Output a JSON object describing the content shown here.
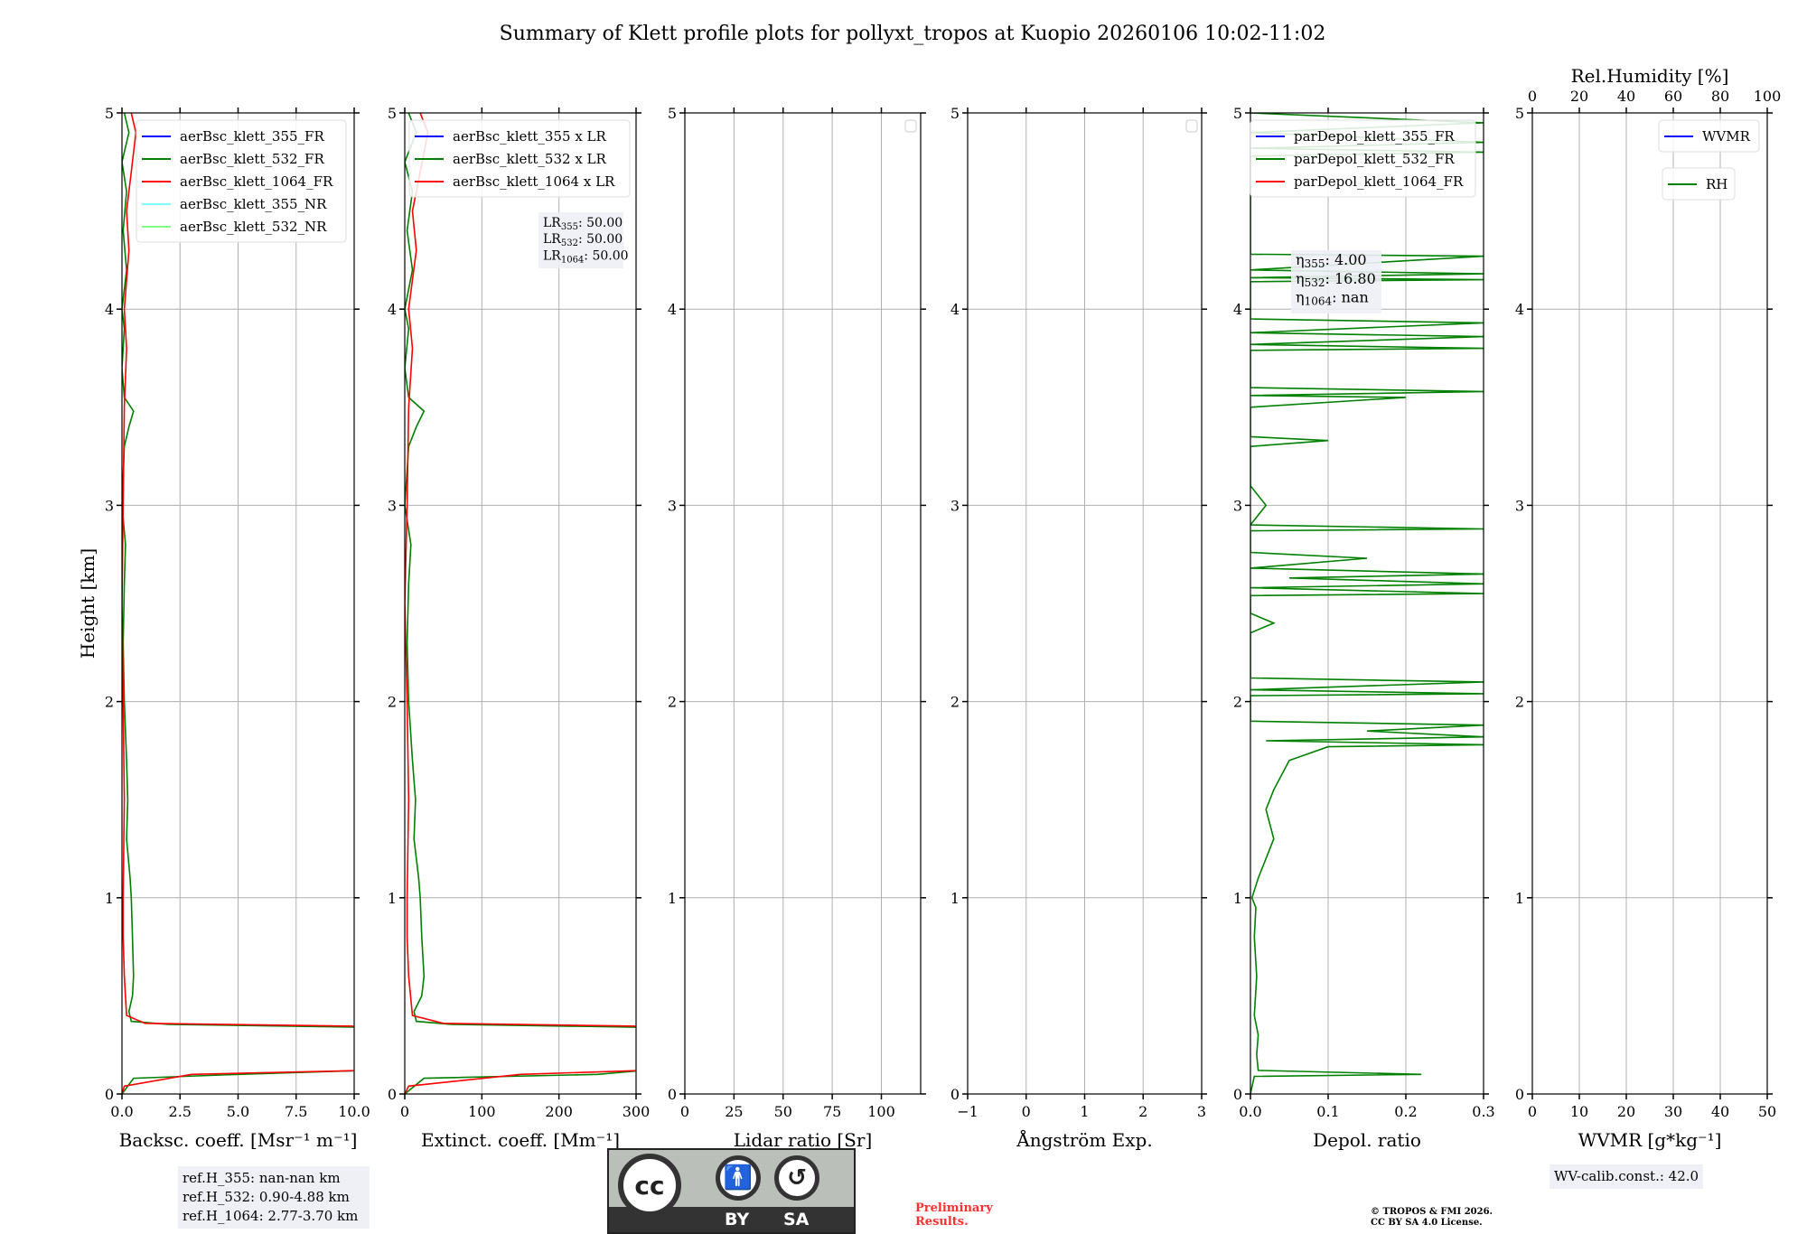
{
  "title": "Summary of Klett profile plots for pollyxt_tropos at Kuopio 20260106 10:02-11:02",
  "ylabel": "Height [km]",
  "yticks": [
    0,
    1,
    2,
    3,
    4,
    5
  ],
  "colors": {
    "c355": "#0000ff",
    "c532": "#008000",
    "c1064": "#ff0000",
    "c355nr": "#80ffff",
    "c532nr": "#80ff80"
  },
  "chart_data": [
    {
      "type": "line",
      "name": "backscatter",
      "xlabel": "Backsc. coeff. [Msr⁻¹ m⁻¹]",
      "xlim": [
        0,
        10
      ],
      "ylim": [
        0,
        5
      ],
      "xticks": [
        0,
        2.5,
        5,
        7.5,
        10
      ],
      "xticklabels": [
        "0.0",
        "2.5",
        "5.0",
        "7.5",
        "10.0"
      ],
      "legend": [
        "aerBsc_klett_355_FR",
        "aerBsc_klett_532_FR",
        "aerBsc_klett_1064_FR",
        "aerBsc_klett_355_NR",
        "aerBsc_klett_532_NR"
      ],
      "legend_colors": [
        "c355",
        "c532",
        "c1064",
        "c355nr",
        "c532nr"
      ],
      "series": [
        {
          "name": "aerBsc_klett_532_FR",
          "color": "c532",
          "points": [
            [
              0,
              0
            ],
            [
              0.5,
              0.08
            ],
            [
              5,
              0.1
            ],
            [
              10.5,
              0.12
            ],
            [
              10.5,
              0.34
            ],
            [
              2,
              0.355
            ],
            [
              0.4,
              0.37
            ],
            [
              0.3,
              0.42
            ],
            [
              0.45,
              0.5
            ],
            [
              0.5,
              0.6
            ],
            [
              0.45,
              0.8
            ],
            [
              0.4,
              1.0
            ],
            [
              0.35,
              1.1
            ],
            [
              0.2,
              1.3
            ],
            [
              0.25,
              1.5
            ],
            [
              0.2,
              1.7
            ],
            [
              0.1,
              2.0
            ],
            [
              0.05,
              2.3
            ],
            [
              0.1,
              2.6
            ],
            [
              0.15,
              2.8
            ],
            [
              0,
              3.0
            ],
            [
              0.1,
              3.3
            ],
            [
              0.3,
              3.4
            ],
            [
              0.5,
              3.48
            ],
            [
              0.1,
              3.55
            ],
            [
              0,
              3.7
            ],
            [
              0.1,
              3.9
            ],
            [
              0,
              4.0
            ],
            [
              0.2,
              4.2
            ],
            [
              0.05,
              4.4
            ],
            [
              0.2,
              4.6
            ],
            [
              0,
              4.75
            ],
            [
              0.3,
              4.9
            ],
            [
              0.1,
              5.0
            ]
          ]
        },
        {
          "name": "aerBsc_klett_1064_FR",
          "color": "c1064",
          "points": [
            [
              0,
              0
            ],
            [
              0.1,
              0.04
            ],
            [
              3,
              0.1
            ],
            [
              10.5,
              0.12
            ],
            [
              10.5,
              0.345
            ],
            [
              1,
              0.36
            ],
            [
              0.2,
              0.4
            ],
            [
              0.1,
              0.6
            ],
            [
              0.05,
              0.8
            ],
            [
              0.05,
              1.0
            ],
            [
              0.1,
              1.5
            ],
            [
              0.05,
              2.0
            ],
            [
              0,
              2.5
            ],
            [
              0.05,
              3.0
            ],
            [
              0.1,
              3.5
            ],
            [
              0.2,
              3.8
            ],
            [
              0.1,
              4.0
            ],
            [
              0.3,
              4.3
            ],
            [
              0.2,
              4.5
            ],
            [
              0.4,
              4.7
            ],
            [
              0.6,
              4.9
            ],
            [
              0.4,
              5.0
            ]
          ]
        }
      ],
      "annotation": {
        "lines": [
          "ref.H_355: nan-nan km",
          "ref.H_532: 0.90-4.88 km",
          "ref.H_1064: 2.77-3.70 km"
        ]
      }
    },
    {
      "type": "line",
      "name": "extinction",
      "xlabel": "Extinct. coeff. [Mm⁻¹]",
      "xlim": [
        0,
        300
      ],
      "ylim": [
        0,
        5
      ],
      "xticks": [
        0,
        100,
        200,
        300
      ],
      "xticklabels": [
        "0",
        "100",
        "200",
        "300"
      ],
      "legend": [
        "aerBsc_klett_355 x LR",
        "aerBsc_klett_532 x LR",
        "aerBsc_klett_1064 x LR"
      ],
      "legend_colors": [
        "c355",
        "c532",
        "c1064"
      ],
      "series": [
        {
          "name": "aerBsc_klett_532 x LR",
          "color": "c532",
          "points": [
            [
              0,
              0
            ],
            [
              25,
              0.08
            ],
            [
              250,
              0.1
            ],
            [
              310,
              0.12
            ],
            [
              310,
              0.34
            ],
            [
              60,
              0.355
            ],
            [
              15,
              0.37
            ],
            [
              12,
              0.42
            ],
            [
              22,
              0.5
            ],
            [
              25,
              0.6
            ],
            [
              22,
              0.8
            ],
            [
              20,
              1.0
            ],
            [
              18,
              1.1
            ],
            [
              12,
              1.3
            ],
            [
              14,
              1.5
            ],
            [
              10,
              1.7
            ],
            [
              5,
              2.0
            ],
            [
              3,
              2.3
            ],
            [
              5,
              2.6
            ],
            [
              8,
              2.8
            ],
            [
              0,
              3.0
            ],
            [
              5,
              3.3
            ],
            [
              15,
              3.4
            ],
            [
              25,
              3.48
            ],
            [
              5,
              3.55
            ],
            [
              0,
              3.7
            ],
            [
              5,
              3.9
            ],
            [
              0,
              4.0
            ],
            [
              10,
              4.2
            ],
            [
              3,
              4.4
            ],
            [
              10,
              4.6
            ],
            [
              0,
              4.75
            ],
            [
              15,
              4.9
            ],
            [
              5,
              5.0
            ]
          ]
        },
        {
          "name": "aerBsc_klett_1064 x LR",
          "color": "c1064",
          "points": [
            [
              0,
              0
            ],
            [
              5,
              0.04
            ],
            [
              150,
              0.1
            ],
            [
              310,
              0.12
            ],
            [
              310,
              0.345
            ],
            [
              50,
              0.36
            ],
            [
              10,
              0.4
            ],
            [
              5,
              0.6
            ],
            [
              3,
              0.8
            ],
            [
              3,
              1.0
            ],
            [
              5,
              1.5
            ],
            [
              3,
              2.0
            ],
            [
              0,
              2.5
            ],
            [
              3,
              3.0
            ],
            [
              5,
              3.5
            ],
            [
              10,
              3.8
            ],
            [
              5,
              4.0
            ],
            [
              15,
              4.3
            ],
            [
              10,
              4.5
            ],
            [
              20,
              4.7
            ],
            [
              30,
              4.9
            ],
            [
              20,
              5.0
            ]
          ]
        }
      ],
      "annotation": {
        "lines": [
          {
            "prefix": "LR",
            "sub": "355",
            "value": ": 50.00"
          },
          {
            "prefix": "LR",
            "sub": "532",
            "value": ": 50.00"
          },
          {
            "prefix": "LR",
            "sub": "1064",
            "value": ": 50.00"
          }
        ]
      }
    },
    {
      "type": "line",
      "name": "lidar-ratio",
      "xlabel": "Lidar ratio [Sr]",
      "xlim": [
        0,
        120
      ],
      "ylim": [
        0,
        5
      ],
      "xticks": [
        0,
        25,
        50,
        75,
        100
      ],
      "xticklabels": [
        "0",
        "25",
        "50",
        "75",
        "100"
      ],
      "legend": [],
      "series": []
    },
    {
      "type": "line",
      "name": "angstrom",
      "xlabel": "Ångström Exp.",
      "xlim": [
        -1,
        3
      ],
      "ylim": [
        0,
        5
      ],
      "xticks": [
        -1,
        0,
        1,
        2,
        3
      ],
      "xticklabels": [
        "−1",
        "0",
        "1",
        "2",
        "3"
      ],
      "legend": [],
      "series": []
    },
    {
      "type": "line",
      "name": "depol",
      "xlabel": "Depol. ratio",
      "xlim": [
        0,
        0.3
      ],
      "ylim": [
        0,
        5
      ],
      "xticks": [
        0,
        0.1,
        0.2,
        0.3
      ],
      "xticklabels": [
        "0.0",
        "0.1",
        "0.2",
        "0.3"
      ],
      "legend": [
        "parDepol_klett_355_FR",
        "parDepol_klett_532_FR",
        "parDepol_klett_1064_FR"
      ],
      "legend_colors": [
        "c355",
        "c532",
        "c1064"
      ],
      "series": [
        {
          "name": "parDepol_klett_532_FR",
          "color": "c532",
          "points": [
            [
              0,
              0
            ],
            [
              0.005,
              0.09
            ],
            [
              0.22,
              0.1
            ],
            [
              0.01,
              0.12
            ],
            [
              0.008,
              0.2
            ],
            [
              0.01,
              0.3
            ],
            [
              0.005,
              0.4
            ],
            [
              0.008,
              0.6
            ],
            [
              0.005,
              0.8
            ],
            [
              0.007,
              0.95
            ],
            [
              0.002,
              1.0
            ],
            [
              0.01,
              1.1
            ],
            [
              0.02,
              1.2
            ],
            [
              0.03,
              1.3
            ],
            [
              0.02,
              1.45
            ],
            [
              0.03,
              1.55
            ],
            [
              0.05,
              1.7
            ],
            [
              0.1,
              1.77
            ],
            [
              0.3,
              1.78
            ],
            [
              0.02,
              1.8
            ],
            [
              0.3,
              1.82
            ],
            [
              0.15,
              1.85
            ],
            [
              0.3,
              1.88
            ],
            [
              0,
              1.9
            ],
            [
              0,
              2.03
            ],
            [
              0.3,
              2.04
            ],
            [
              0,
              2.06
            ],
            [
              0.3,
              2.1
            ],
            [
              0,
              2.12
            ],
            [
              0,
              2.35
            ],
            [
              0.03,
              2.4
            ],
            [
              0,
              2.45
            ],
            [
              0,
              2.54
            ],
            [
              0.3,
              2.55
            ],
            [
              0,
              2.58
            ],
            [
              0.3,
              2.6
            ],
            [
              0.05,
              2.63
            ],
            [
              0.3,
              2.65
            ],
            [
              0,
              2.68
            ],
            [
              0.15,
              2.73
            ],
            [
              0,
              2.76
            ],
            [
              0,
              2.87
            ],
            [
              0.3,
              2.88
            ],
            [
              0,
              2.9
            ],
            [
              0.02,
              3.0
            ],
            [
              0,
              3.1
            ],
            [
              0,
              3.3
            ],
            [
              0.1,
              3.33
            ],
            [
              0,
              3.35
            ],
            [
              0,
              3.5
            ],
            [
              0.2,
              3.55
            ],
            [
              0,
              3.56
            ],
            [
              0.3,
              3.58
            ],
            [
              0,
              3.6
            ],
            [
              0,
              3.79
            ],
            [
              0.3,
              3.8
            ],
            [
              0,
              3.82
            ],
            [
              0.3,
              3.86
            ],
            [
              0,
              3.88
            ],
            [
              0.3,
              3.93
            ],
            [
              0,
              3.95
            ],
            [
              0,
              4.14
            ],
            [
              0.3,
              4.15
            ],
            [
              0,
              4.16
            ],
            [
              0.3,
              4.18
            ],
            [
              0,
              4.2
            ],
            [
              0.3,
              4.27
            ],
            [
              0,
              4.28
            ],
            [
              0,
              4.78
            ],
            [
              0.3,
              4.8
            ],
            [
              0,
              4.82
            ],
            [
              0.3,
              4.85
            ],
            [
              0,
              4.9
            ],
            [
              0.3,
              4.95
            ],
            [
              0,
              5.0
            ]
          ]
        }
      ],
      "annotation": {
        "lines": [
          {
            "prefix": "η",
            "sub": "355",
            "value": ": 4.00"
          },
          {
            "prefix": "η",
            "sub": "532",
            "value": ": 16.80"
          },
          {
            "prefix": "η",
            "sub": "1064",
            "value": ": nan"
          }
        ]
      }
    },
    {
      "type": "line",
      "name": "wvmr-rh",
      "xlabel": "WVMR [g*kg⁻¹]",
      "xlim": [
        0,
        50
      ],
      "ylim": [
        0,
        5
      ],
      "xticks": [
        0,
        10,
        20,
        30,
        40,
        50
      ],
      "xticklabels": [
        "0",
        "10",
        "20",
        "30",
        "40",
        "50"
      ],
      "top_axis": {
        "label": "Rel.Humidity [%]",
        "xlim": [
          0,
          100
        ],
        "ticks": [
          0,
          20,
          40,
          60,
          80,
          100
        ],
        "ticklabels": [
          "0",
          "20",
          "40",
          "60",
          "80",
          "100"
        ]
      },
      "legend": [
        "WVMR"
      ],
      "legend_colors": [
        "c355"
      ],
      "legend2": [
        "RH"
      ],
      "legend2_colors": [
        "c532"
      ],
      "series": [],
      "annotation": {
        "lines": [
          "WV-calib.const.: 42.0"
        ]
      }
    }
  ],
  "footer": {
    "cc_labels": [
      "BY",
      "SA"
    ],
    "cc_text": "cc",
    "preliminary": [
      "Preliminary",
      "Results."
    ],
    "copyright": [
      "© TROPOS & FMI 2026.",
      "CC BY SA 4.0 License."
    ]
  }
}
